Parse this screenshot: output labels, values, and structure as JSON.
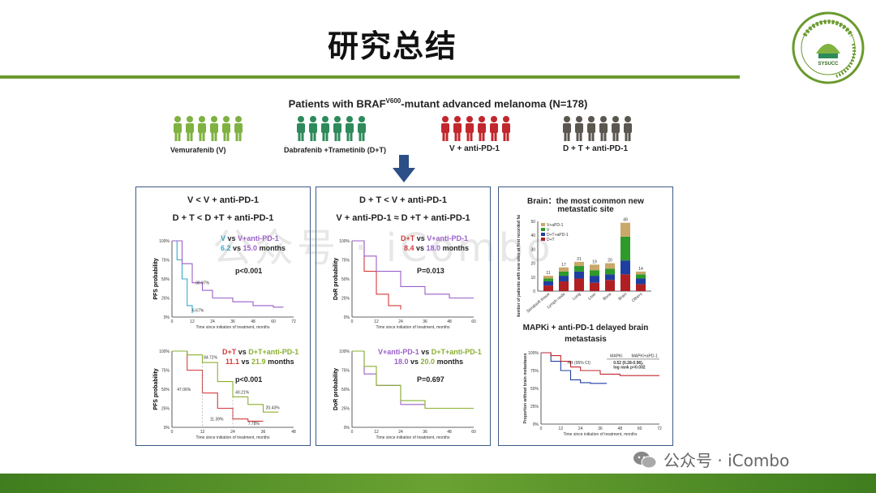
{
  "title": "研究总结",
  "heading_pre": "Patients with BRAF",
  "heading_sup": "V600",
  "heading_post": "-mutant advanced melanoma (N=178)",
  "groups": [
    {
      "label": "Vemurafenib (V)",
      "color": "#7fb241"
    },
    {
      "label": "Dabrafenib +Trametinib (D+T)",
      "color": "#2e8a5a"
    },
    {
      "label": "V + anti-PD-1",
      "color": "#c1272d"
    },
    {
      "label": "D + T + anti-PD-1",
      "color": "#5a5650"
    }
  ],
  "panel1": {
    "title1": "V < V + anti-PD-1",
    "title2": "D + T < D +T + anti-PD-1",
    "top": {
      "ylabel": "PFS probability",
      "xlabel": "Time since initiation of treatment, months",
      "stat_a": "V",
      "stat_vs": " vs ",
      "stat_b": "V+anti-PD-1",
      "val_a": "6.2",
      "val_b": "15.0",
      "unit": " months",
      "p": "p<0.001",
      "ann1": "30.97%",
      "ann2": "6.67%"
    },
    "bottom": {
      "ylabel": "PFS probability",
      "xlabel": "Time since initiation of treatment, months",
      "stat_a": "D+T",
      "stat_vs": " vs ",
      "stat_b": "D+T+anti-PD-1",
      "val_a": "11.1",
      "val_b": "21.9",
      "unit": " months",
      "p": "p<0.001",
      "ann1": "84.72%",
      "ann2": "47.06%",
      "ann3": "40.21%",
      "ann4": "20.43%",
      "ann5": "11.39%",
      "ann6": "7.78%"
    }
  },
  "panel2": {
    "title1": "D + T < V + anti-PD-1",
    "title2": "V + anti-PD-1 ≈ D +T + anti-PD-1",
    "top": {
      "ylabel": "DoR probability",
      "xlabel": "Time since initiation of treatment, months",
      "stat_a": "D+T",
      "stat_vs": " vs ",
      "stat_b": "V+anti-PD-1",
      "val_a": "8.4",
      "val_b": "18.0",
      "unit": " months",
      "p": "P=0.013"
    },
    "bottom": {
      "ylabel": "DoR probability",
      "xlabel": "Time since initiation of treatment, months",
      "stat_a": "V+anti-PD-1",
      "stat_vs": " vs ",
      "stat_b": "D+T+anti-PD-1",
      "val_a": "18.0",
      "val_b": "20.0",
      "unit": " months",
      "p": "P=0.697"
    }
  },
  "panel3": {
    "title1": "Brain：the most common new",
    "title2": "metastatic site",
    "bar_ylabel": "Number of patients with new sites at first recorded failure",
    "legend": [
      "V+aPD-1",
      "V",
      "D+T+aPD-1",
      "D+T"
    ],
    "bar_categories": [
      "Skin&soft tissue",
      "Lymph node",
      "Lung",
      "Liver",
      "Bone",
      "Brain",
      "Others"
    ],
    "bar_totals": [
      "11",
      "17",
      "21",
      "19",
      "20",
      "49",
      "14"
    ],
    "bottom_title1": "MAPKi + anti-PD-1 delayed brain",
    "bottom_title2": "metastasis",
    "km_ylabel": "Proportion without brain metastases",
    "km_xlabel": "Time since initiation of treatment, months",
    "table_head_a": "MAPKi",
    "table_head_b": "MAPKi+aPD-1",
    "hr_label": "HR (95% CI)",
    "hr_value": "0.52 (0.28-0.96),",
    "logrank": "log rank p=0.032"
  },
  "pct_ticks": [
    "0%",
    "25%",
    "50%",
    "75%",
    "100%"
  ],
  "month_ticks_60": [
    "0",
    "12",
    "24",
    "36",
    "48",
    "60"
  ],
  "month_ticks_72": [
    "0",
    "12",
    "24",
    "36",
    "48",
    "60",
    "72"
  ],
  "watermark": "公众号 · iCombo",
  "colors": {
    "green": "#6a9a2e",
    "panel_border": "#3c5a86",
    "cyan": "#3aa8c8",
    "purple": "#9a5fc9",
    "red": "#d43a3a",
    "olive": "#8ab030",
    "blue": "#1f3fa0"
  },
  "chart_data": [
    {
      "type": "line",
      "title": "",
      "xlabel": "Time since initiation of treatment, months",
      "ylabel": "PFS probability",
      "xlim": [
        0,
        72
      ],
      "ylim": [
        0,
        100
      ],
      "series": [
        {
          "name": "V",
          "x": [
            0,
            3,
            6,
            9,
            12
          ],
          "y": [
            100,
            75,
            50,
            15,
            5
          ]
        },
        {
          "name": "V+anti-PD-1",
          "x": [
            0,
            6,
            12,
            18,
            24,
            36,
            48,
            60,
            66
          ],
          "y": [
            100,
            70,
            45,
            35,
            25,
            20,
            15,
            13,
            13
          ]
        }
      ]
    },
    {
      "type": "line",
      "title": "",
      "xlabel": "Time since initiation of treatment, months",
      "ylabel": "PFS probability",
      "xlim": [
        0,
        48
      ],
      "ylim": [
        0,
        100
      ],
      "series": [
        {
          "name": "D+T",
          "x": [
            0,
            6,
            12,
            18,
            24,
            30,
            36
          ],
          "y": [
            100,
            75,
            45,
            25,
            11,
            8,
            8
          ]
        },
        {
          "name": "D+T+anti-PD-1",
          "x": [
            0,
            6,
            12,
            18,
            24,
            30,
            36,
            42
          ],
          "y": [
            100,
            95,
            85,
            60,
            40,
            30,
            20,
            20
          ]
        }
      ]
    },
    {
      "type": "line",
      "title": "",
      "xlabel": "Time since initiation of treatment, months",
      "ylabel": "DoR probability",
      "xlim": [
        0,
        60
      ],
      "ylim": [
        0,
        100
      ],
      "series": [
        {
          "name": "D+T",
          "x": [
            0,
            6,
            12,
            18,
            24
          ],
          "y": [
            100,
            60,
            30,
            15,
            10
          ]
        },
        {
          "name": "V+anti-PD-1",
          "x": [
            0,
            6,
            12,
            24,
            36,
            48,
            60
          ],
          "y": [
            100,
            80,
            60,
            40,
            30,
            25,
            25
          ]
        }
      ]
    },
    {
      "type": "line",
      "title": "",
      "xlabel": "Time since initiation of treatment, months",
      "ylabel": "DoR probability",
      "xlim": [
        0,
        60
      ],
      "ylim": [
        0,
        100
      ],
      "series": [
        {
          "name": "V+anti-PD-1",
          "x": [
            0,
            6,
            12,
            24,
            36
          ],
          "y": [
            100,
            70,
            55,
            30,
            25
          ]
        },
        {
          "name": "D+T+anti-PD-1",
          "x": [
            0,
            6,
            12,
            24,
            36,
            48,
            60
          ],
          "y": [
            100,
            80,
            55,
            35,
            25,
            25,
            25
          ]
        }
      ]
    },
    {
      "type": "bar",
      "title": "",
      "ylabel": "Number of patients with new sites at first recorded failure",
      "categories": [
        "Skin&soft tissue",
        "Lymph node",
        "Lung",
        "Liver",
        "Bone",
        "Brain",
        "Others"
      ],
      "ylim": [
        0,
        50
      ],
      "series": [
        {
          "name": "D+T",
          "values": [
            4,
            7,
            9,
            6,
            8,
            12,
            5
          ]
        },
        {
          "name": "D+T+aPD-1",
          "values": [
            3,
            4,
            5,
            5,
            4,
            10,
            4
          ]
        },
        {
          "name": "V",
          "values": [
            2,
            3,
            4,
            4,
            4,
            17,
            3
          ]
        },
        {
          "name": "V+aPD-1",
          "values": [
            2,
            3,
            3,
            4,
            4,
            10,
            2
          ]
        }
      ],
      "totals": [
        11,
        17,
        21,
        19,
        20,
        49,
        14
      ]
    },
    {
      "type": "line",
      "title": "",
      "xlabel": "Time since initiation of treatment, months",
      "ylabel": "Proportion without brain metastases",
      "xlim": [
        0,
        72
      ],
      "ylim": [
        0,
        100
      ],
      "series": [
        {
          "name": "MAPKi",
          "x": [
            0,
            6,
            12,
            18,
            24,
            30,
            36,
            40
          ],
          "y": [
            100,
            88,
            75,
            62,
            58,
            57,
            57,
            57
          ]
        },
        {
          "name": "MAPKi+aPD-1",
          "x": [
            0,
            6,
            12,
            18,
            24,
            36,
            48,
            60,
            72
          ],
          "y": [
            100,
            96,
            88,
            80,
            75,
            70,
            68,
            68,
            68
          ]
        }
      ]
    }
  ]
}
